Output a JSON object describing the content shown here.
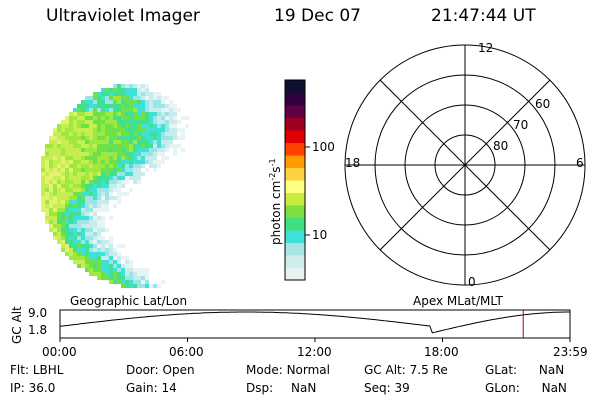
{
  "header": {
    "instrument": "Ultraviolet Imager",
    "date": "19 Dec 07",
    "time": "21:47:44 UT"
  },
  "colorbar": {
    "unit_label": "photon cm",
    "unit_sup1": "-2",
    "unit_s": "s",
    "unit_sup2": "-1",
    "ticks": [
      "100",
      "10"
    ],
    "colors": [
      "#e6f2f2",
      "#d0ecec",
      "#a8e4e4",
      "#3ee0d8",
      "#40e080",
      "#7ee040",
      "#c8ec40",
      "#ffff80",
      "#ffd040",
      "#ff9a00",
      "#ff4000",
      "#e00000",
      "#a00020",
      "#600040",
      "#300040",
      "#101030"
    ]
  },
  "polar": {
    "lat_labels": [
      "80",
      "70",
      "60"
    ],
    "mlt_labels": {
      "top": "12",
      "bottom": "0",
      "left": "18",
      "right": "6"
    }
  },
  "labels": {
    "geographic": "Geographic Lat/Lon",
    "apex": "Apex MLat/MLT"
  },
  "timeline": {
    "ylabel": "GC Alt",
    "y_max": "9.0",
    "y_min": "1.8",
    "x_ticks": [
      "00:00",
      "06:00",
      "12:00",
      "18:00",
      "23:59"
    ],
    "current_time_hours": 21.8,
    "marker_color": "#c00000"
  },
  "status": {
    "flt_label": "Flt:",
    "flt_value": "LBHL",
    "ip_label": "IP:",
    "ip_value": "36.0",
    "door_label": "Door:",
    "door_value": "Open",
    "gain_label": "Gain:",
    "gain_value": "14",
    "mode_label": "Mode:",
    "mode_value": "Normal",
    "dsp_label": "Dsp:",
    "dsp_value": "NaN",
    "gcalt_label": "GC Alt:",
    "gcalt_value": "7.5 Re",
    "seq_label": "Seq:",
    "seq_value": "39",
    "glat_label": "GLat:",
    "glat_value": "NaN",
    "glon_label": "GLon:",
    "glon_value": "NaN"
  }
}
